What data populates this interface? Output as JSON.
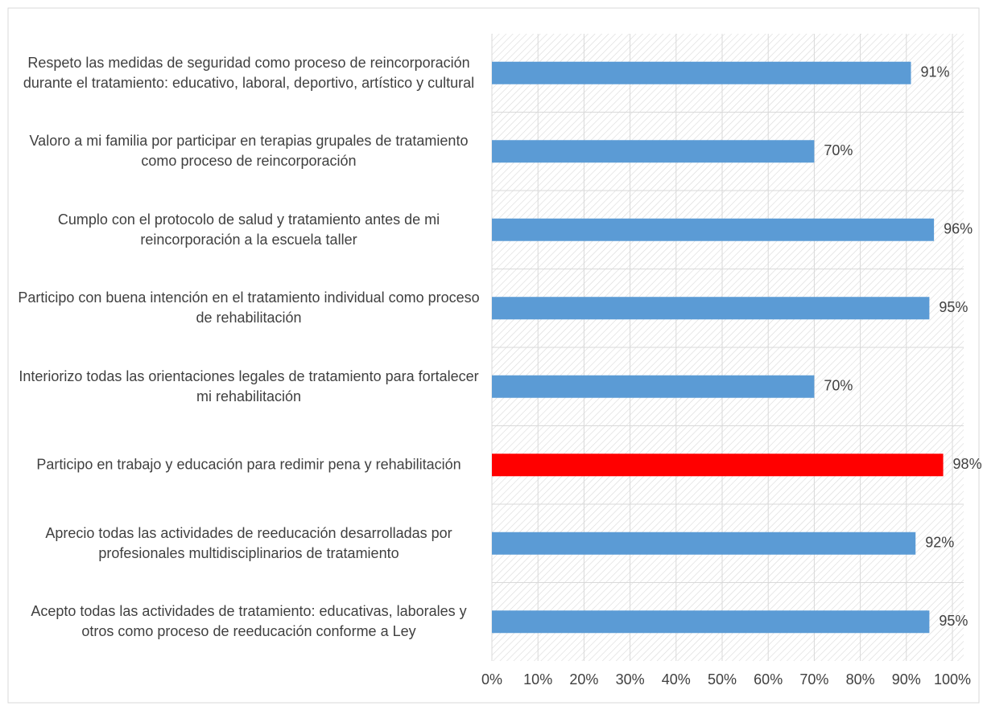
{
  "chart_data": {
    "type": "barh",
    "categories": [
      "Respeto las medidas de seguridad como proceso de reincorporación durante el tratamiento: educativo, laboral, deportivo, artístico y cultural",
      "Valoro a mi familia por participar en terapias grupales de tratamiento como proceso de reincorporación",
      "Cumplo con el protocolo de salud y tratamiento antes de mi reincorporación a la escuela taller",
      "Participo con buena intención en el tratamiento individual como proceso de rehabilitación",
      "Interiorizo todas las orientaciones legales de tratamiento para fortalecer mi rehabilitación",
      "Participo en trabajo y educación para redimir pena y rehabilitación",
      "Aprecio todas las actividades de reeducación desarrolladas por profesionales multidisciplinarios de tratamiento",
      "Acepto todas las actividades de tratamiento: educativas, laborales y otros como proceso de reeducación conforme a Ley"
    ],
    "values": [
      91,
      70,
      96,
      95,
      70,
      98,
      92,
      95
    ],
    "value_labels": [
      "91%",
      "70%",
      "96%",
      "95%",
      "70%",
      "98%",
      "92%",
      "95%"
    ],
    "colors": [
      "#5b9bd5",
      "#5b9bd5",
      "#5b9bd5",
      "#5b9bd5",
      "#5b9bd5",
      "#ff0000",
      "#5b9bd5",
      "#5b9bd5"
    ],
    "xlim": [
      0,
      100
    ],
    "xticks": [
      {
        "value": 0,
        "label": "0%"
      },
      {
        "value": 10,
        "label": "10%"
      },
      {
        "value": 20,
        "label": "20%"
      },
      {
        "value": 30,
        "label": "30%"
      },
      {
        "value": 40,
        "label": "40%"
      },
      {
        "value": 50,
        "label": "50%"
      },
      {
        "value": 60,
        "label": "60%"
      },
      {
        "value": 70,
        "label": "70%"
      },
      {
        "value": 80,
        "label": "80%"
      },
      {
        "value": 90,
        "label": "90%"
      },
      {
        "value": 100,
        "label": "100%"
      }
    ],
    "grid": true
  }
}
